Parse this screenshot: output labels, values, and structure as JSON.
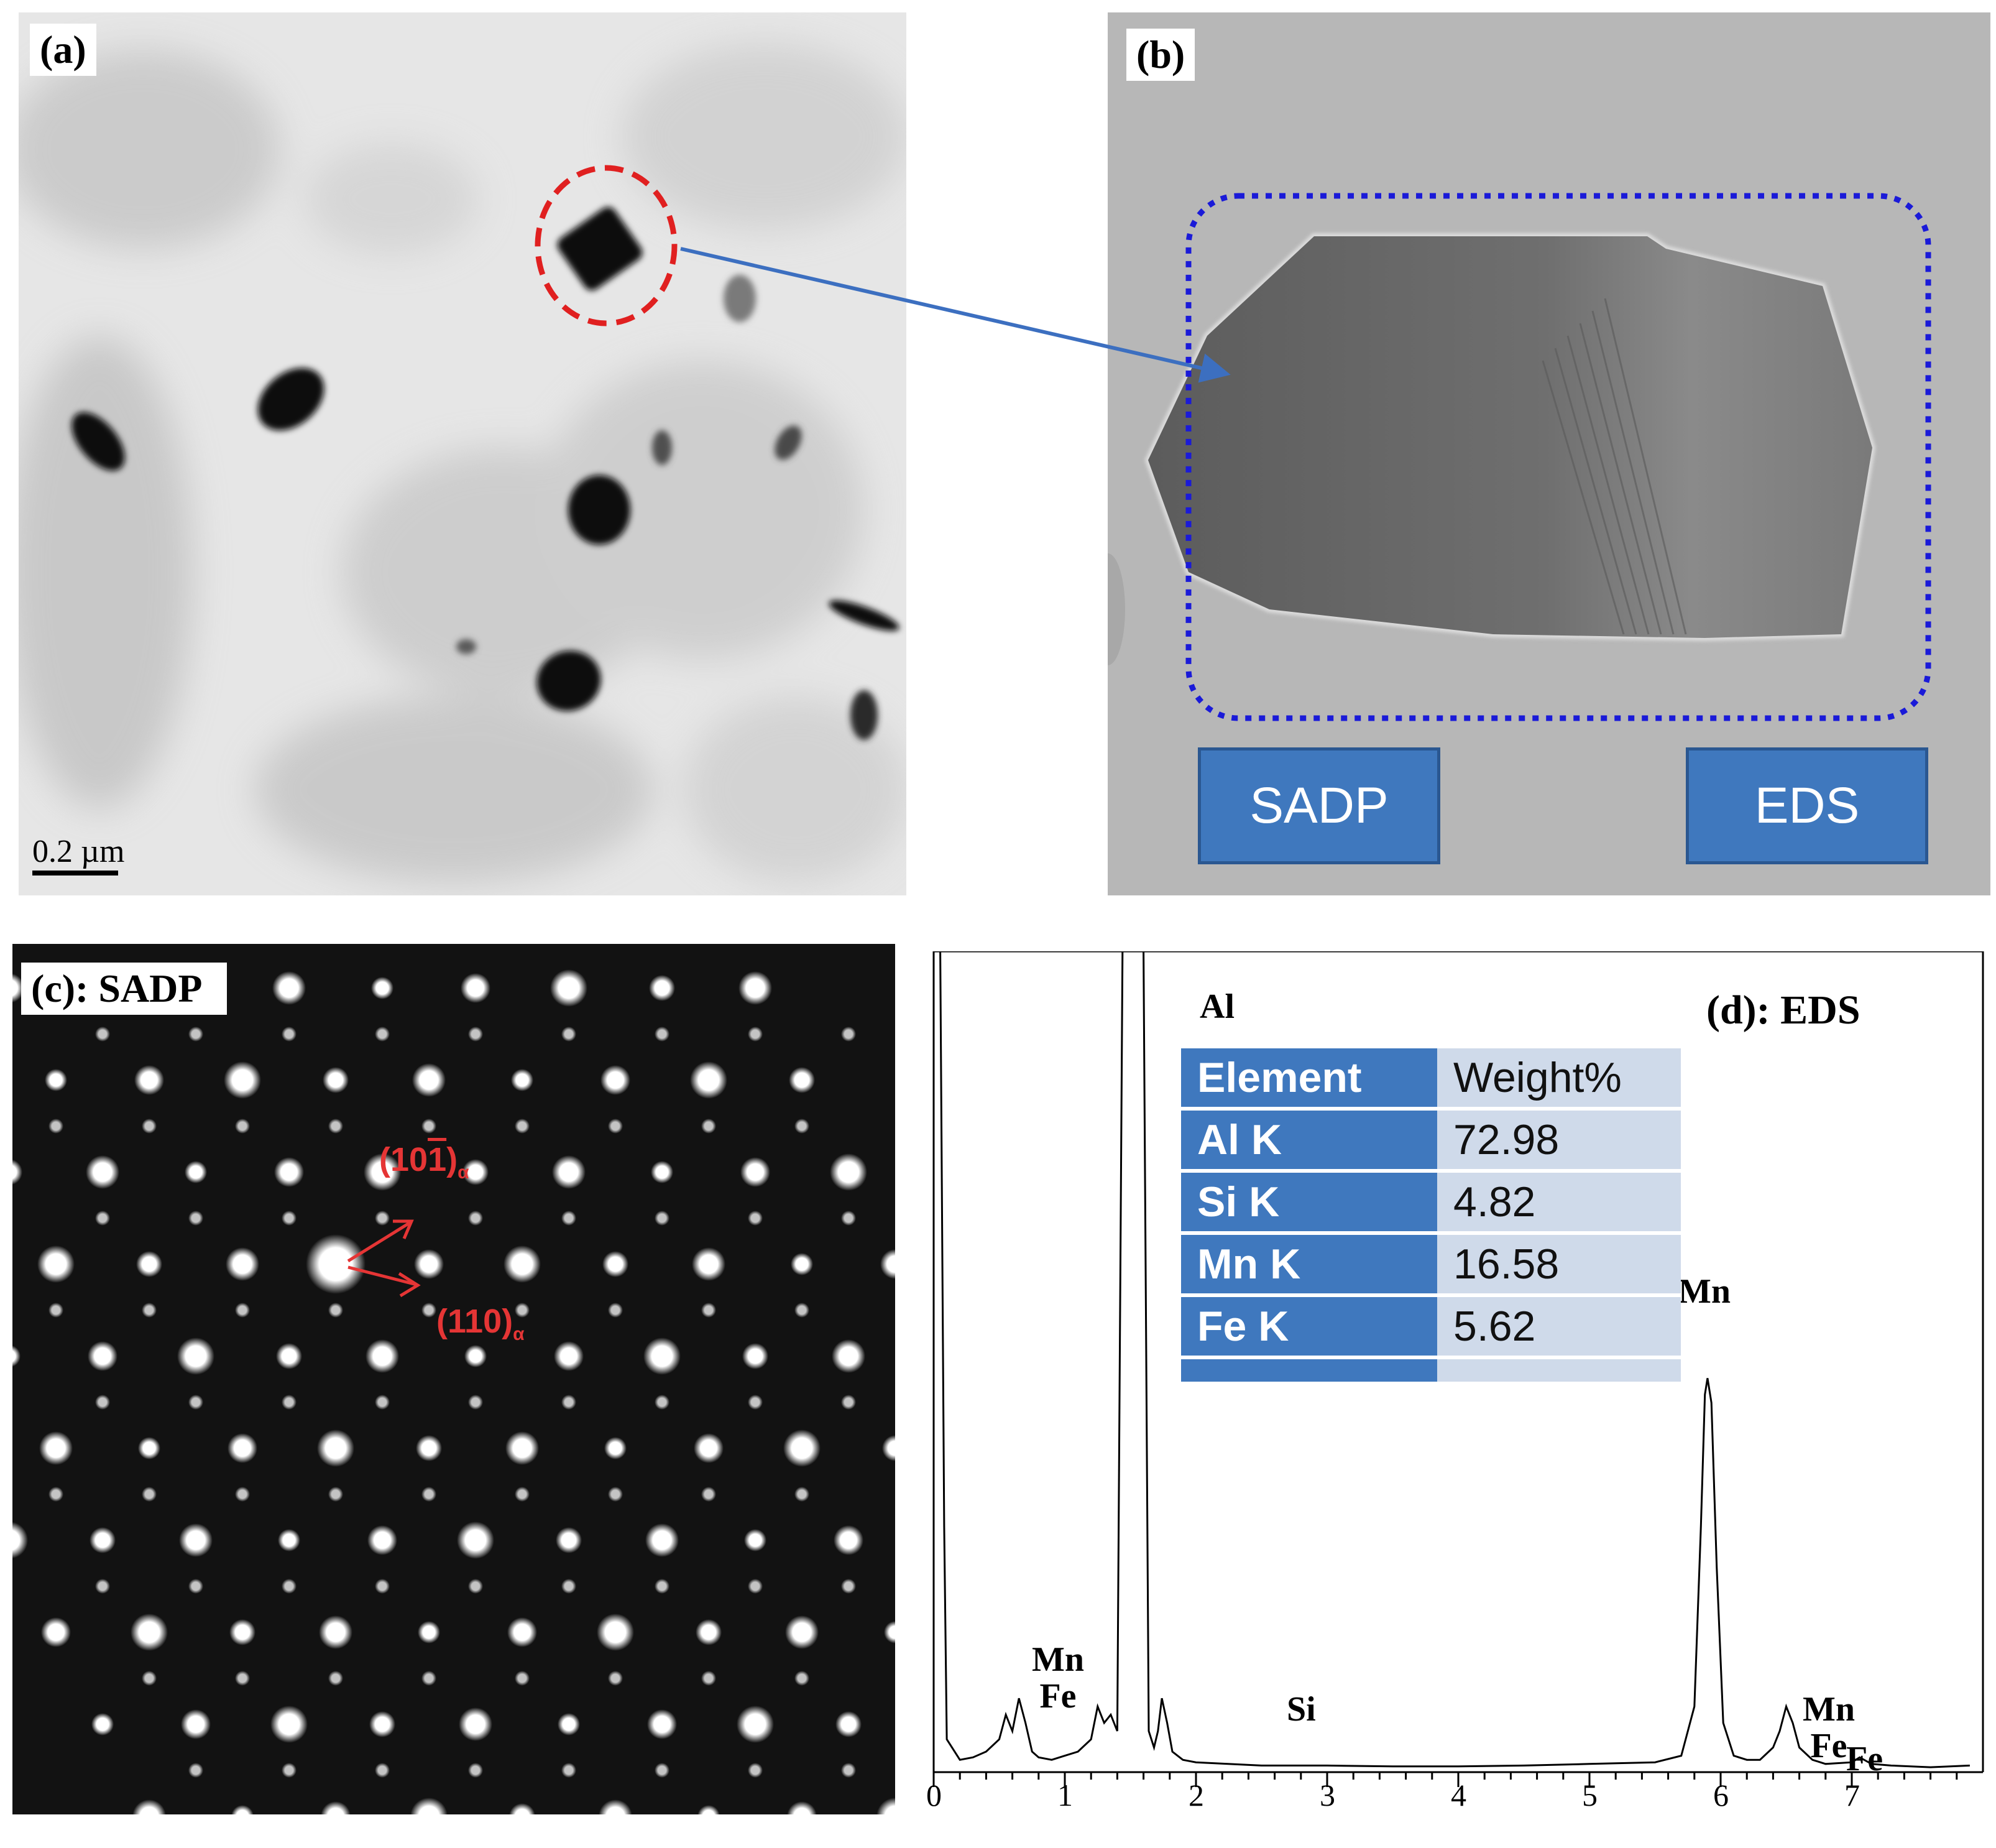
{
  "panels": {
    "a": {
      "label": "(a)",
      "scale_bar": "0.2 µm"
    },
    "b": {
      "label": "(b)",
      "boxes": [
        "SADP",
        "EDS"
      ]
    },
    "c": {
      "label": "(c): SADP",
      "index_1": "(101)",
      "index_1_bar_digit": "1",
      "index_2": "(110)",
      "subscript": "α"
    },
    "d": {
      "label": "(d): EDS"
    }
  },
  "eds_table": {
    "headers": [
      "Element",
      "Weight%"
    ],
    "rows": [
      [
        "Al K",
        "72.98"
      ],
      [
        "Si K",
        "4.82"
      ],
      [
        "Mn K",
        "16.58"
      ],
      [
        "Fe K",
        "5.62"
      ]
    ]
  },
  "chart_data": {
    "type": "line",
    "title": "(d): EDS",
    "xlabel": "",
    "ylabel": "",
    "xlim": [
      0,
      8
    ],
    "x_ticks": [
      "0",
      "1",
      "2",
      "3",
      "4",
      "5",
      "6",
      "7"
    ],
    "peaks": [
      {
        "label": "Mn Fe",
        "x": 0.65
      },
      {
        "label": "Al",
        "x": 1.49
      },
      {
        "label": "Si",
        "x": 1.74
      },
      {
        "label": "Mn",
        "x": 5.9
      },
      {
        "label": "Mn Fe",
        "x": 6.5
      },
      {
        "label": "Fe",
        "x": 7.06
      }
    ],
    "series": [
      {
        "x": [
          0,
          0.02,
          0.05,
          0.08,
          0.1,
          0.2,
          0.3,
          0.4,
          0.5,
          0.55,
          0.6,
          0.65,
          0.7,
          0.75,
          0.8,
          0.9,
          1.0,
          1.1,
          1.2,
          1.25,
          1.3,
          1.35,
          1.4,
          1.44,
          1.47,
          1.49,
          1.52,
          1.56,
          1.6,
          1.64,
          1.68,
          1.71,
          1.74,
          1.78,
          1.82,
          1.9,
          2.0,
          2.5,
          3.0,
          3.5,
          4.0,
          4.5,
          5.0,
          5.5,
          5.7,
          5.8,
          5.85,
          5.88,
          5.9,
          5.93,
          5.97,
          6.02,
          6.1,
          6.2,
          6.3,
          6.4,
          6.45,
          6.5,
          6.55,
          6.6,
          6.7,
          6.8,
          7.0,
          7.06,
          7.15,
          7.3,
          7.6,
          7.9
        ],
        "y": [
          100,
          100,
          100,
          30,
          4,
          1.5,
          1.8,
          2.5,
          4,
          7,
          5,
          9,
          6,
          2.5,
          1.8,
          1.5,
          2.0,
          2.5,
          4,
          8,
          6,
          7,
          5,
          100,
          100,
          100,
          100,
          100,
          100,
          5,
          3,
          5,
          9,
          6,
          2.5,
          1.5,
          1.2,
          0.8,
          0.8,
          0.7,
          0.7,
          0.8,
          1.0,
          1.2,
          2,
          8,
          30,
          46,
          48,
          45,
          25,
          6,
          2,
          1.5,
          1.5,
          3,
          5,
          8,
          6,
          3,
          1.5,
          1.0,
          1.2,
          1.8,
          1.0,
          0.8,
          0.6,
          0.8
        ]
      }
    ]
  }
}
